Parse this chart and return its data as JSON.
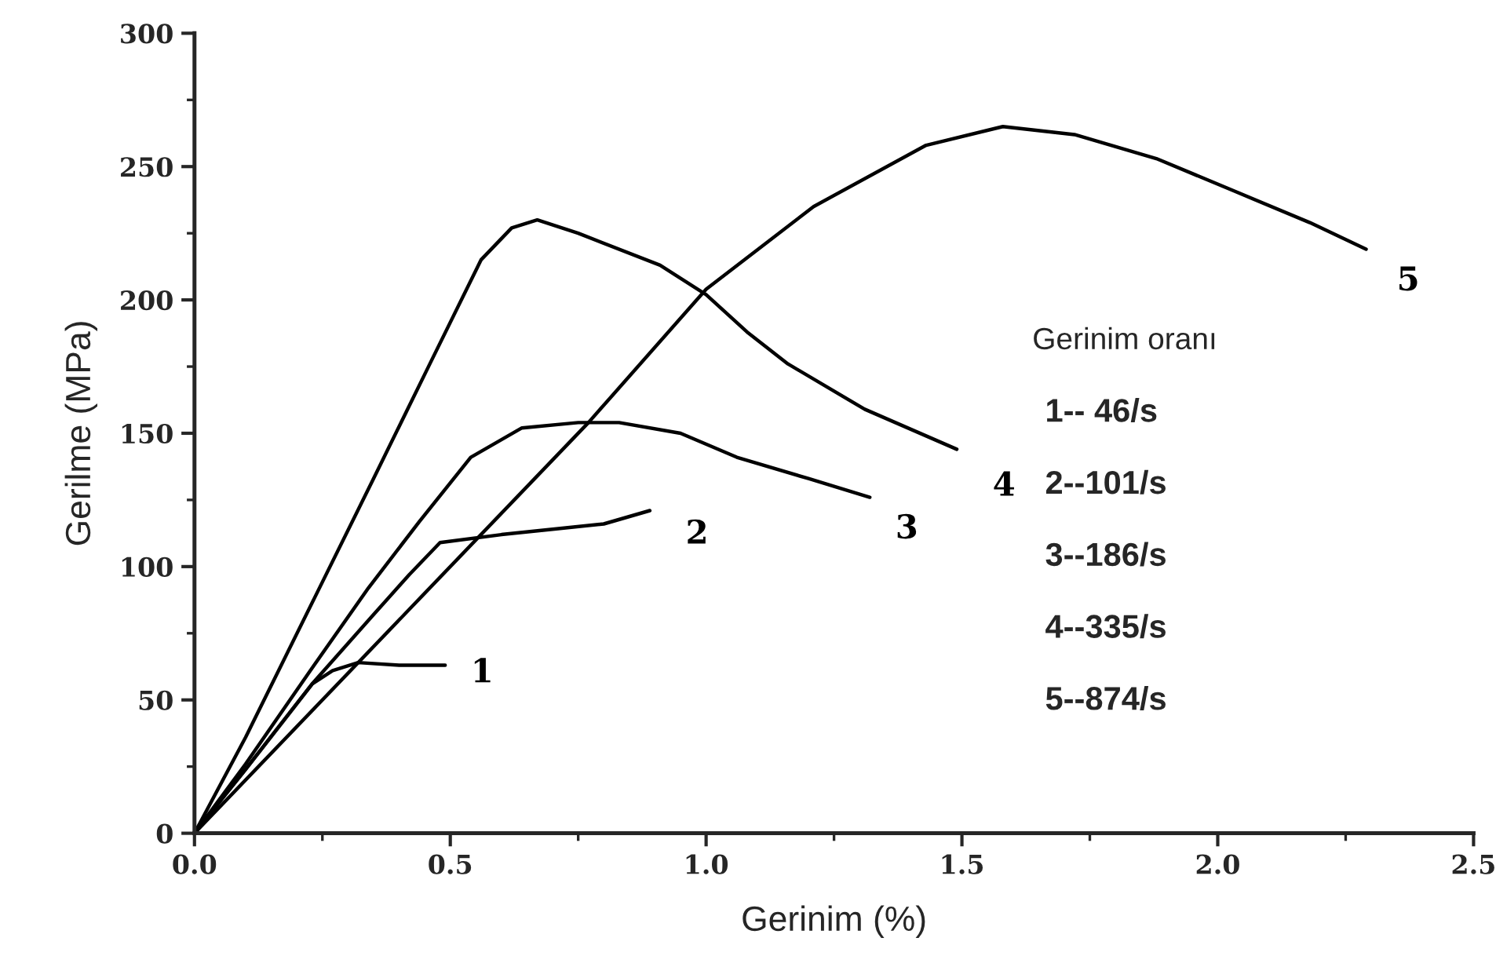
{
  "chart_data": {
    "type": "line",
    "xlabel": "Gerinim (%)",
    "ylabel": "Gerilme (MPa)",
    "xlim": [
      0,
      2.5
    ],
    "ylim": [
      0,
      300
    ],
    "xticks": [
      {
        "value": 0,
        "label": "0.0"
      },
      {
        "value": 0.5,
        "label": "0.5"
      },
      {
        "value": 1.0,
        "label": "1.0"
      },
      {
        "value": 1.5,
        "label": "1.5"
      },
      {
        "value": 2.0,
        "label": "2.0"
      },
      {
        "value": 2.5,
        "label": "2.5"
      }
    ],
    "yticks": [
      0,
      50,
      100,
      150,
      200,
      250,
      300
    ],
    "grid": false,
    "legend": false,
    "marker": "none",
    "line_style": "solid",
    "series": [
      {
        "name": "1",
        "color": "#000000",
        "x": [
          0,
          0.1,
          0.23,
          0.27,
          0.32,
          0.4,
          0.49
        ],
        "values": [
          0,
          24,
          56,
          61,
          64,
          63,
          63
        ]
      },
      {
        "name": "2",
        "color": "#000000",
        "x": [
          0,
          0.1,
          0.23,
          0.35,
          0.42,
          0.48,
          0.6,
          0.7,
          0.8,
          0.89
        ],
        "values": [
          0,
          24,
          56,
          82,
          97,
          109,
          112,
          114,
          116,
          121
        ]
      },
      {
        "name": "3",
        "color": "#000000",
        "x": [
          0,
          0.1,
          0.23,
          0.34,
          0.44,
          0.54,
          0.64,
          0.75,
          0.83,
          0.95,
          1.06,
          1.2,
          1.32
        ],
        "values": [
          0,
          26,
          62,
          92,
          117,
          141,
          152,
          154,
          154,
          150,
          141,
          133,
          126
        ]
      },
      {
        "name": "4",
        "color": "#000000",
        "x": [
          0,
          0.1,
          0.234,
          0.35,
          0.46,
          0.56,
          0.62,
          0.67,
          0.75,
          0.91,
          1.0,
          1.08,
          1.16,
          1.31,
          1.49
        ],
        "values": [
          0,
          36,
          88,
          133,
          176,
          215,
          227,
          230,
          225,
          213,
          202,
          188,
          176,
          159,
          144
        ]
      },
      {
        "name": "5",
        "color": "#000000",
        "x": [
          0,
          0.4,
          0.77,
          1.0,
          1.21,
          1.43,
          1.58,
          1.72,
          1.88,
          2.03,
          2.18,
          2.29
        ],
        "values": [
          0,
          80,
          154,
          204,
          235,
          258,
          265,
          262,
          253,
          241,
          229,
          219
        ]
      }
    ],
    "annotations": [
      "Gerinim oranı",
      "1-- 46/s",
      "2--101/s",
      "3--186/s",
      "4--335/s",
      "5--874/s"
    ]
  }
}
